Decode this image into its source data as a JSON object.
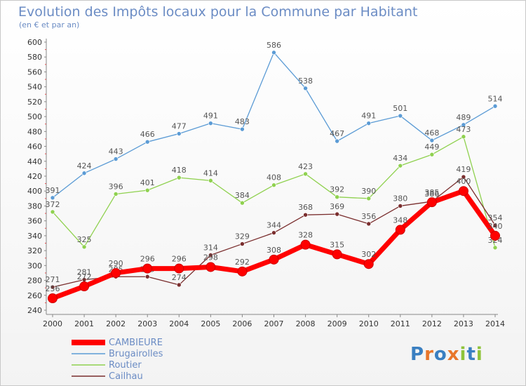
{
  "chart_data": {
    "type": "line",
    "title": "Evolution des Impôts locaux pour la Commune par Habitant",
    "subtitle": "(en € et par an)",
    "xlabel": "",
    "ylabel": "",
    "ylim": [
      240,
      600
    ],
    "ytick_step": 20,
    "grid": false,
    "legend_position": "bottom-left",
    "x": [
      "2000",
      "2001",
      "2002",
      "2003",
      "2004",
      "2005",
      "2006",
      "2007",
      "2008",
      "2009",
      "2010",
      "2011",
      "2012",
      "2013",
      "2014"
    ],
    "series": [
      {
        "name": "Brugairolles",
        "color": "#5b9bd5",
        "values": [
          391,
          424,
          443,
          466,
          477,
          491,
          483,
          586,
          538,
          467,
          491,
          501,
          468,
          489,
          514
        ]
      },
      {
        "name": "Routier",
        "color": "#8fd14f",
        "values": [
          372,
          325,
          396,
          401,
          418,
          414,
          384,
          408,
          423,
          392,
          390,
          434,
          449,
          473,
          324
        ]
      },
      {
        "name": "Cailhau",
        "color": "#7a2e2e",
        "values": [
          271,
          281,
          285,
          285,
          274,
          314,
          329,
          344,
          368,
          369,
          356,
          380,
          386,
          419,
          354
        ]
      },
      {
        "name": "CAMBIEURE",
        "color": "#ff0000",
        "values": [
          256,
          272,
          290,
          296,
          296,
          298,
          292,
          308,
          328,
          315,
          302,
          348,
          385,
          400,
          340
        ]
      }
    ],
    "legend": [
      "CAMBIEURE",
      "Brugairolles",
      "Routier",
      "Cailhau"
    ]
  },
  "brand": {
    "text": "Proxiti",
    "letters": [
      {
        "ch": "P",
        "color": "#3a7fc1"
      },
      {
        "ch": "r",
        "color": "#e8762b"
      },
      {
        "ch": "o",
        "color": "#3a7fc1"
      },
      {
        "ch": "x",
        "color": "#e8762b"
      },
      {
        "ch": "i",
        "color": "#8fc33a"
      },
      {
        "ch": "t",
        "color": "#3a7fc1"
      },
      {
        "ch": "i",
        "color": "#8fc33a"
      }
    ]
  }
}
